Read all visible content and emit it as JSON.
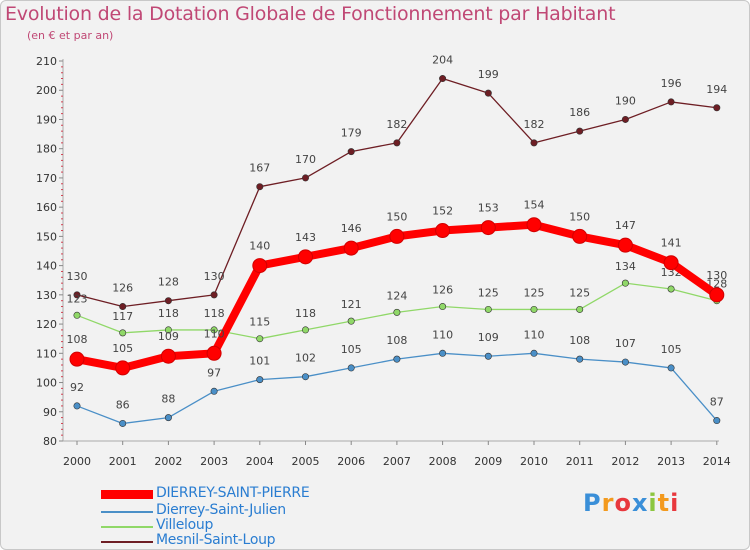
{
  "chart_data": {
    "type": "line",
    "title": "Evolution de la Dotation Globale de Fonctionnement par Habitant",
    "subtitle": "(en € et par an)",
    "xlabel": "",
    "ylabel": "",
    "ylim": [
      80,
      210
    ],
    "y_ticks": [
      80,
      90,
      100,
      110,
      120,
      130,
      140,
      150,
      160,
      170,
      180,
      190,
      200,
      210
    ],
    "categories": [
      "2000",
      "2001",
      "2002",
      "2003",
      "2004",
      "2005",
      "2006",
      "2007",
      "2008",
      "2009",
      "2010",
      "2011",
      "2012",
      "2013",
      "2014"
    ],
    "series": [
      {
        "name": "DIERREY-SAINT-PIERRE",
        "color": "#ff0000",
        "values": [
          108,
          105,
          109,
          110,
          140,
          143,
          146,
          150,
          152,
          153,
          154,
          150,
          147,
          141,
          130
        ]
      },
      {
        "name": "Dierrey-Saint-Julien",
        "color": "#4a8fc7",
        "values": [
          92,
          86,
          88,
          97,
          101,
          102,
          105,
          108,
          110,
          109,
          110,
          108,
          107,
          105,
          87
        ]
      },
      {
        "name": "Villeloup",
        "color": "#90d868",
        "values": [
          123,
          117,
          118,
          118,
          115,
          118,
          121,
          124,
          126,
          125,
          125,
          125,
          134,
          132,
          128
        ]
      },
      {
        "name": "Mesnil-Saint-Loup",
        "color": "#6e1e24",
        "values": [
          130,
          126,
          128,
          130,
          167,
          170,
          179,
          182,
          204,
          199,
          182,
          186,
          190,
          196,
          194
        ]
      }
    ],
    "grid": false,
    "legend_position": "bottom-left"
  },
  "logo": {
    "text": "Proxiti"
  }
}
